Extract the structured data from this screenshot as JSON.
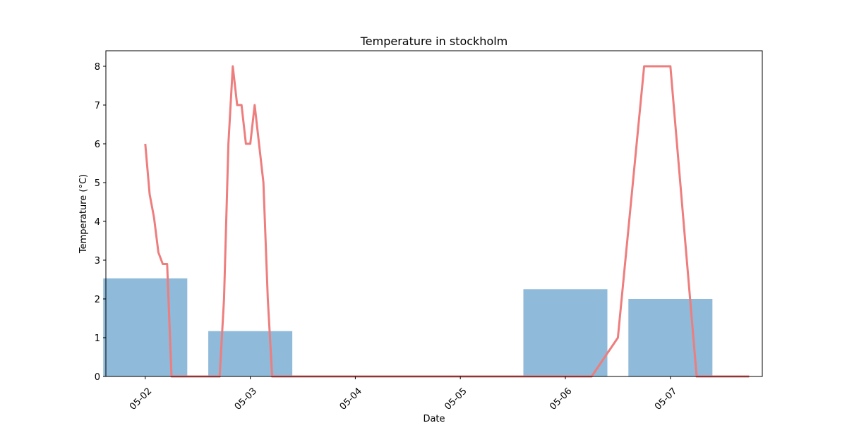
{
  "chart_data": {
    "type": "bar+line",
    "title": "Temperature in stockholm",
    "xlabel": "Date",
    "ylabel": "Temperature (°C)",
    "x_ticks": [
      "05-02",
      "05-03",
      "05-04",
      "05-05",
      "05-06",
      "05-07"
    ],
    "xlim": [
      "2023-05-01T15:00",
      "2023-05-07T21:00"
    ],
    "ylim": [
      0,
      8.4
    ],
    "y_ticks": [
      0,
      1,
      2,
      3,
      4,
      5,
      6,
      7,
      8
    ],
    "grid": false,
    "bars": {
      "color": "#8fbad9",
      "bar_width_days": 0.8,
      "values": [
        {
          "date": "2023-05-02",
          "value": 2.53
        },
        {
          "date": "2023-05-03",
          "value": 1.17
        },
        {
          "date": "2023-05-06",
          "value": 2.25
        },
        {
          "date": "2023-05-07",
          "value": 2.0
        }
      ]
    },
    "line": {
      "color": "#ee7d7d",
      "points": [
        {
          "x": "2023-05-02T00:00",
          "y": 6.0
        },
        {
          "x": "2023-05-02T01:00",
          "y": 4.7
        },
        {
          "x": "2023-05-02T02:00",
          "y": 4.1
        },
        {
          "x": "2023-05-02T03:00",
          "y": 3.2
        },
        {
          "x": "2023-05-02T04:00",
          "y": 2.9
        },
        {
          "x": "2023-05-02T05:00",
          "y": 2.9
        },
        {
          "x": "2023-05-02T06:00",
          "y": 0
        },
        {
          "x": "2023-05-02T17:00",
          "y": 0
        },
        {
          "x": "2023-05-02T18:00",
          "y": 2.0
        },
        {
          "x": "2023-05-02T19:00",
          "y": 6.0
        },
        {
          "x": "2023-05-02T20:00",
          "y": 8.0
        },
        {
          "x": "2023-05-02T21:00",
          "y": 7.0
        },
        {
          "x": "2023-05-02T22:00",
          "y": 7.0
        },
        {
          "x": "2023-05-02T23:00",
          "y": 6.0
        },
        {
          "x": "2023-05-03T00:00",
          "y": 6.0
        },
        {
          "x": "2023-05-03T01:00",
          "y": 7.0
        },
        {
          "x": "2023-05-03T02:00",
          "y": 6.0
        },
        {
          "x": "2023-05-03T03:00",
          "y": 5.0
        },
        {
          "x": "2023-05-03T04:00",
          "y": 2.0
        },
        {
          "x": "2023-05-03T05:00",
          "y": 0
        },
        {
          "x": "2023-05-06T06:00",
          "y": 0
        },
        {
          "x": "2023-05-06T12:00",
          "y": 1.0
        },
        {
          "x": "2023-05-06T18:00",
          "y": 8.0
        },
        {
          "x": "2023-05-07T00:00",
          "y": 8.0
        },
        {
          "x": "2023-05-07T06:00",
          "y": 0
        },
        {
          "x": "2023-05-07T18:00",
          "y": 0
        }
      ]
    }
  }
}
